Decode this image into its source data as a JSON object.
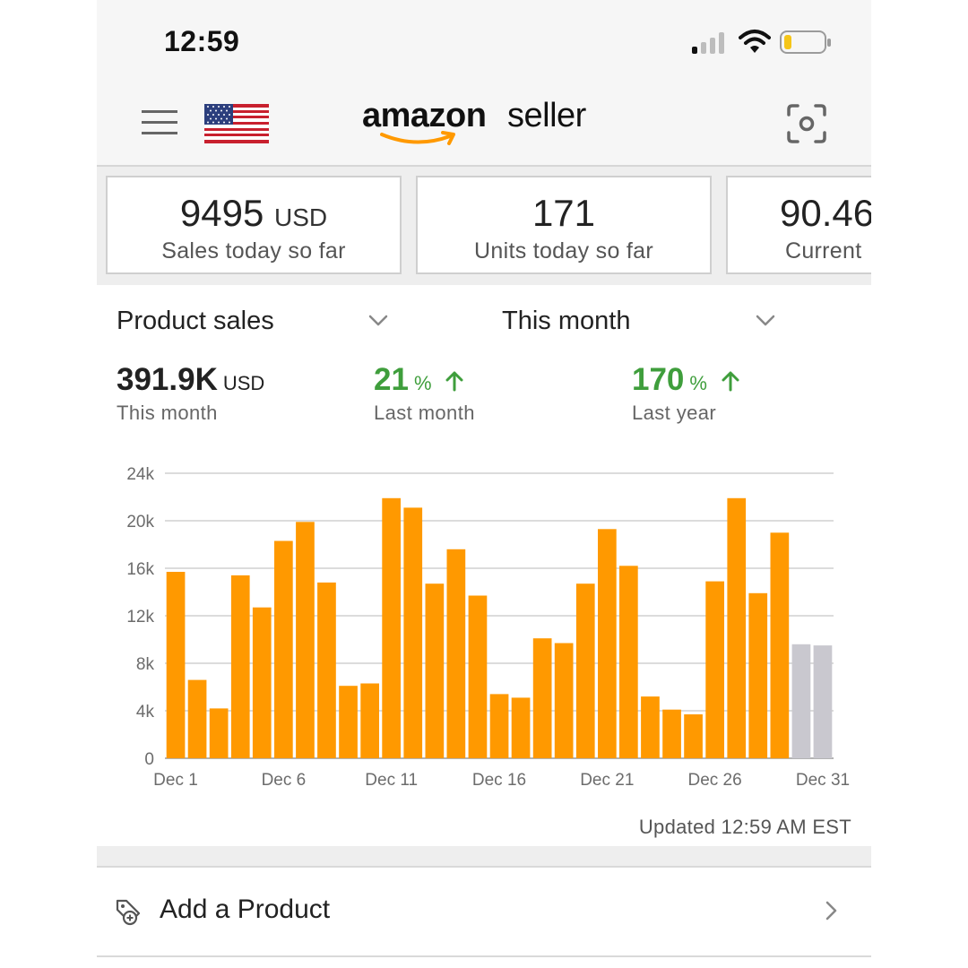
{
  "status_bar": {
    "time": "12:59"
  },
  "header": {
    "brand_primary": "amazon",
    "brand_secondary": "seller",
    "icons": [
      "menu-icon",
      "us-flag-icon",
      "scan-icon"
    ]
  },
  "metric_cards": [
    {
      "value": "9495",
      "unit": "USD",
      "label": "Sales today so far"
    },
    {
      "value": "171",
      "unit": "",
      "label": "Units today so far"
    },
    {
      "value": "90.46",
      "unit": "",
      "label": "Current"
    }
  ],
  "filters": {
    "metric": "Product sales",
    "period": "This month"
  },
  "summary": {
    "this_month_value": "391.9K",
    "this_month_unit": "USD",
    "this_month_label": "This month",
    "last_month_value": "21",
    "last_month_pct": "%",
    "last_month_label": "Last month",
    "last_year_value": "170",
    "last_year_pct": "%",
    "last_year_label": "Last year"
  },
  "colors": {
    "bar_actual": "#ff9900",
    "bar_projected": "#c9c8cf",
    "positive": "#3f9e3c"
  },
  "chart_data": {
    "type": "bar",
    "x": [
      "Dec 1",
      "Dec 2",
      "Dec 3",
      "Dec 4",
      "Dec 5",
      "Dec 6",
      "Dec 7",
      "Dec 8",
      "Dec 9",
      "Dec 10",
      "Dec 11",
      "Dec 12",
      "Dec 13",
      "Dec 14",
      "Dec 15",
      "Dec 16",
      "Dec 17",
      "Dec 18",
      "Dec 19",
      "Dec 20",
      "Dec 21",
      "Dec 22",
      "Dec 23",
      "Dec 24",
      "Dec 25",
      "Dec 26",
      "Dec 27",
      "Dec 28",
      "Dec 29",
      "Dec 30",
      "Dec 31"
    ],
    "series": [
      {
        "values": [
          15700,
          6600,
          4200,
          15400,
          12700,
          18300,
          19900,
          14800,
          6100,
          6300,
          21900,
          21100,
          14700,
          17600,
          13700,
          5400,
          5100,
          10100,
          9700,
          14700,
          19300,
          16200,
          5200,
          4100,
          3700,
          14900,
          21900,
          13900,
          19000,
          9600,
          9500
        ],
        "projected_from_index": 29
      }
    ],
    "xticks": [
      "Dec 1",
      "Dec 6",
      "Dec 11",
      "Dec 16",
      "Dec 21",
      "Dec 26",
      "Dec 31"
    ],
    "yticks": [
      "0",
      "4k",
      "8k",
      "12k",
      "16k",
      "20k",
      "24k"
    ],
    "ylim": [
      0,
      24000
    ],
    "grid": true,
    "legend": "none"
  },
  "updated_text": "Updated 12:59 AM EST",
  "add_product": {
    "label": "Add a Product"
  }
}
